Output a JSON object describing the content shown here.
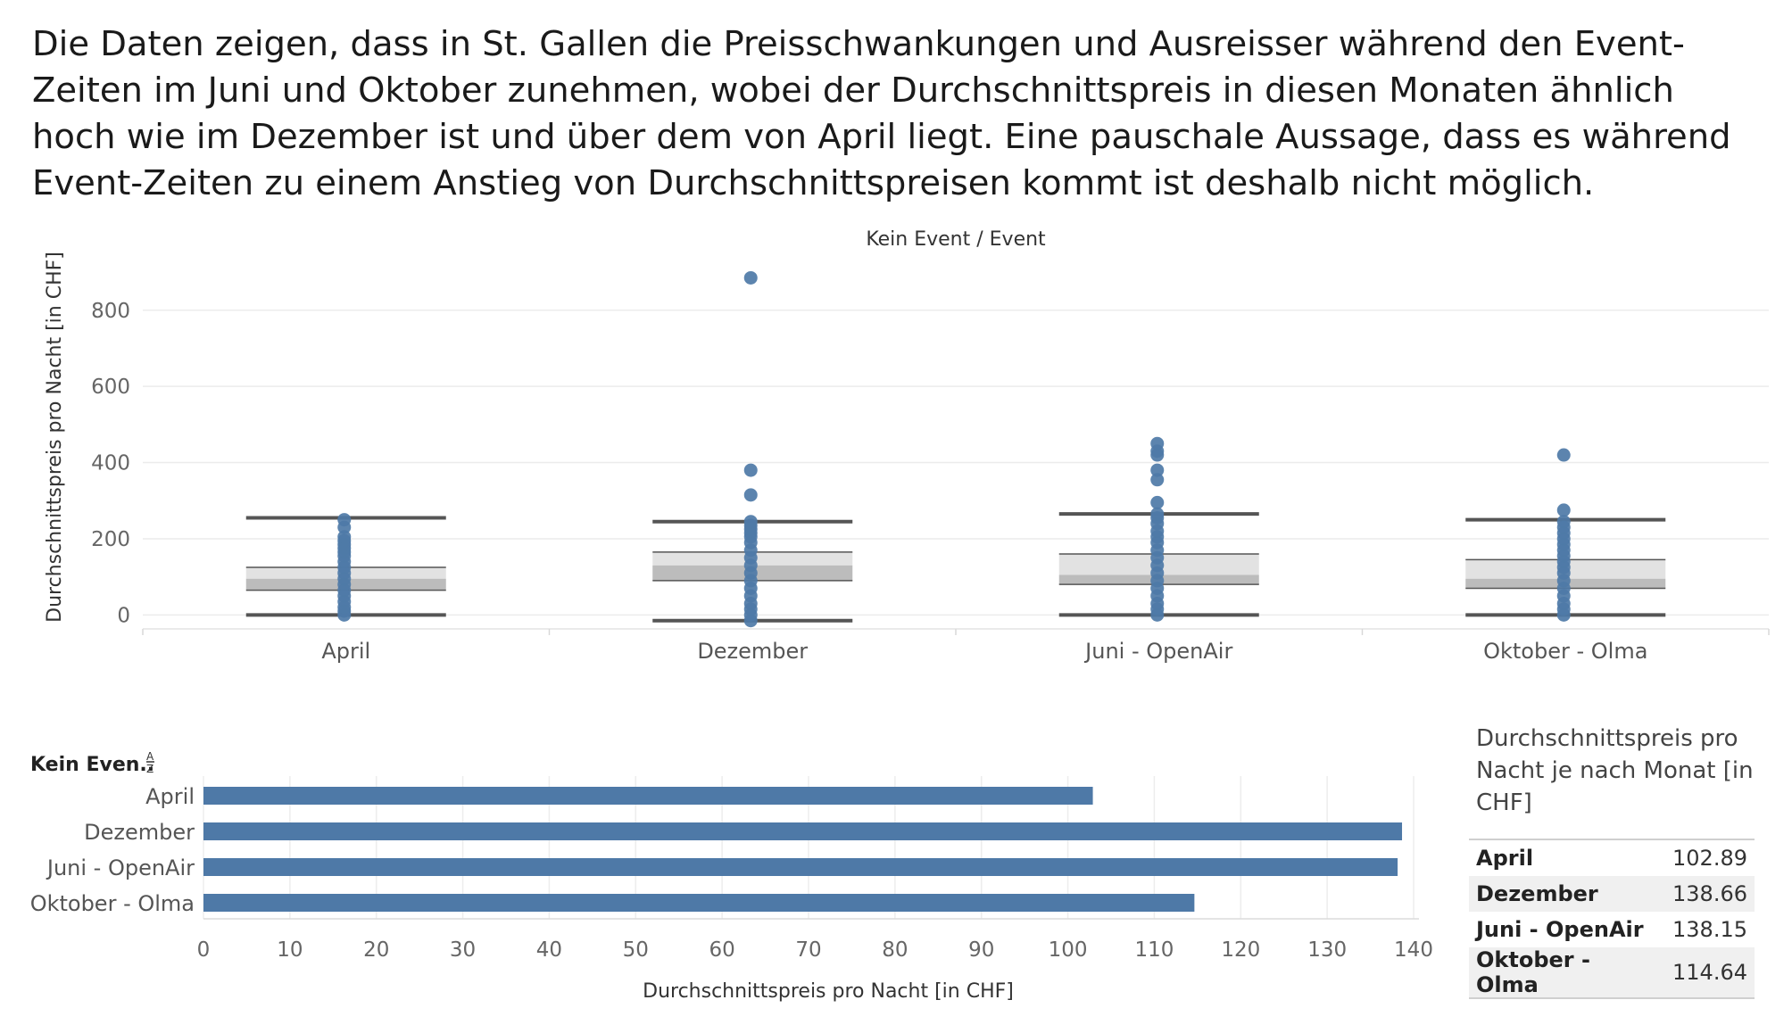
{
  "headline": "Die Daten zeigen, dass in St. Gallen die Preisschwankungen und Ausreisser während den Event-Zeiten im Juni und Oktober zunehmen, wobei der Durchschnittspreis in diesen Monaten ähnlich hoch wie im Dezember ist und über dem von April liegt. Eine pauschale Aussage, dass es während Event-Zeiten zu einem Anstieg von Durchschnittspreisen kommt ist deshalb nicht möglich.",
  "colors": {
    "accent": "#4e79a7",
    "whisker": "#555555",
    "box_outer": "#e2e2e2",
    "box_inner": "#bcbcbc"
  },
  "chart_data": [
    {
      "type": "box",
      "title": "Kein Event / Event",
      "ylabel": "Durchschnittspreis pro Nacht [in CHF]",
      "ylim": [
        -25,
        940
      ],
      "yticks": [
        0,
        200,
        400,
        600,
        800
      ],
      "categories": [
        "April",
        "Dezember",
        "Juni - OpenAir",
        "Oktober - Olma"
      ],
      "boxes": [
        {
          "category": "April",
          "whisker_low": 0,
          "q1": 65,
          "median": 95,
          "q3": 125,
          "whisker_high": 255
        },
        {
          "category": "Dezember",
          "whisker_low": -15,
          "q1": 90,
          "median": 130,
          "q3": 165,
          "whisker_high": 245
        },
        {
          "category": "Juni - OpenAir",
          "whisker_low": 0,
          "q1": 80,
          "median": 105,
          "q3": 160,
          "whisker_high": 265
        },
        {
          "category": "Oktober - Olma",
          "whisker_low": 0,
          "q1": 70,
          "median": 95,
          "q3": 145,
          "whisker_high": 250
        }
      ],
      "points": [
        {
          "category": "April",
          "values": [
            0,
            10,
            20,
            35,
            50,
            65,
            80,
            95,
            110,
            125,
            140,
            155,
            165,
            175,
            185,
            195,
            205,
            230,
            250
          ]
        },
        {
          "category": "Dezember",
          "values": [
            -15,
            0,
            15,
            30,
            50,
            70,
            90,
            110,
            130,
            150,
            170,
            190,
            205,
            215,
            225,
            235,
            245,
            315,
            380,
            885
          ]
        },
        {
          "category": "Juni - OpenAir",
          "values": [
            0,
            15,
            30,
            50,
            70,
            90,
            110,
            130,
            150,
            170,
            190,
            205,
            220,
            240,
            255,
            265,
            295,
            355,
            380,
            420,
            430,
            450
          ]
        },
        {
          "category": "Oktober - Olma",
          "values": [
            0,
            15,
            30,
            50,
            70,
            90,
            110,
            125,
            140,
            155,
            170,
            185,
            200,
            215,
            230,
            245,
            275,
            420
          ]
        }
      ]
    },
    {
      "type": "bar",
      "orientation": "horizontal",
      "header": "Kein Even..",
      "sort_icon": "sort-icon",
      "xlabel": "Durchschnittspreis pro Nacht [in CHF]",
      "xlim": [
        0,
        140
      ],
      "xticks": [
        0,
        10,
        20,
        30,
        40,
        50,
        60,
        70,
        80,
        90,
        100,
        110,
        120,
        130,
        140
      ],
      "categories": [
        "April",
        "Dezember",
        "Juni - OpenAir",
        "Oktober - Olma"
      ],
      "values": [
        102.89,
        138.66,
        138.15,
        114.64
      ]
    }
  ],
  "summary": {
    "title": "Durchschnittspreis pro Nacht je nach Monat [in CHF]",
    "rows": [
      {
        "month": "April",
        "value": "102.89"
      },
      {
        "month": "Dezember",
        "value": "138.66"
      },
      {
        "month": "Juni - OpenAir",
        "value": "138.15"
      },
      {
        "month": "Oktober - Olma",
        "value": "114.64"
      }
    ]
  }
}
